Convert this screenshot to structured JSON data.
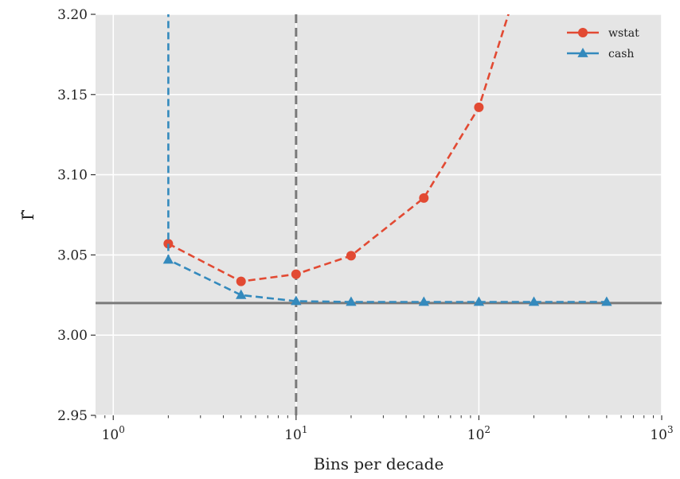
{
  "chart_data": {
    "type": "line",
    "xlabel": "Bins per decade",
    "ylabel": "Γ̂",
    "xscale": "log",
    "xlim": [
      0.8,
      1000
    ],
    "ylim": [
      2.95,
      3.2
    ],
    "grid": true,
    "legend_position": "top-right",
    "x_ticks": [
      {
        "value": 1,
        "base": "10",
        "exp": "0"
      },
      {
        "value": 10,
        "base": "10",
        "exp": "1"
      },
      {
        "value": 100,
        "base": "10",
        "exp": "2"
      },
      {
        "value": 1000,
        "base": "10",
        "exp": "3"
      }
    ],
    "y_ticks": [
      {
        "value": 2.95,
        "label": "2.95"
      },
      {
        "value": 3.0,
        "label": "3.00"
      },
      {
        "value": 3.05,
        "label": "3.05"
      },
      {
        "value": 3.1,
        "label": "3.10"
      },
      {
        "value": 3.15,
        "label": "3.15"
      },
      {
        "value": 3.2,
        "label": "3.20"
      }
    ],
    "series": [
      {
        "name": "wstat",
        "color": "#e24a33",
        "marker": "circle",
        "x": [
          2,
          5,
          10,
          20,
          50,
          100,
          200
        ],
        "y": [
          3.057,
          3.0335,
          3.038,
          3.0495,
          3.0855,
          3.142,
          3.25
        ]
      },
      {
        "name": "cash",
        "color": "#348abd",
        "marker": "triangle",
        "x": [
          2,
          2,
          5,
          10,
          20,
          50,
          100,
          200,
          500
        ],
        "y": [
          3.3,
          3.047,
          3.025,
          3.0212,
          3.0207,
          3.0207,
          3.0207,
          3.0207,
          3.0207
        ],
        "marker_mask": [
          false,
          true,
          true,
          true,
          true,
          true,
          true,
          true,
          true
        ]
      }
    ],
    "reference_lines": [
      {
        "orientation": "horizontal",
        "value": 3.02,
        "style": "solid",
        "color": "#7a7a7a"
      },
      {
        "orientation": "vertical",
        "value": 10,
        "style": "dashed",
        "color": "#7a7a7a"
      }
    ]
  }
}
